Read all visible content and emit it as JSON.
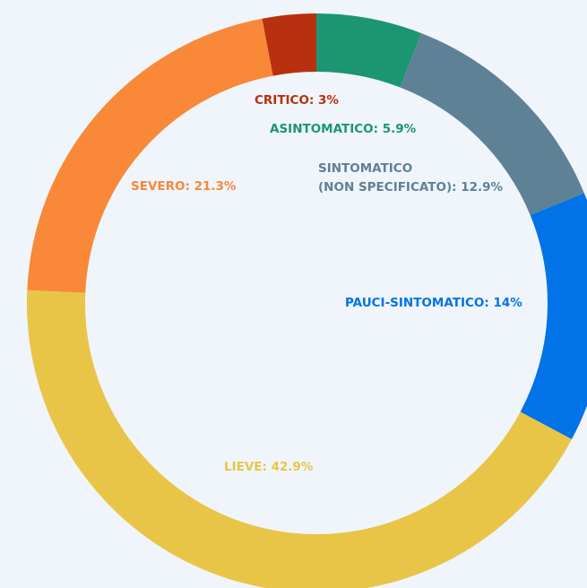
{
  "chart_data": {
    "type": "donut",
    "values": [
      5.9,
      12.9,
      14,
      42.9,
      21.3,
      3
    ],
    "value_labels": [
      [
        "ASINTOMATICO: 5.9%"
      ],
      [
        "SINTOMATICO",
        "(NON SPECIFICATO): 12.9%"
      ],
      [
        "PAUCI-SINTOMATICO: 14%"
      ],
      [
        "LIEVE: 42.9%"
      ],
      [
        "SEVERO: 21.3%"
      ],
      [
        "CRITICO: 3%"
      ]
    ],
    "colors": [
      "#1b9670",
      "#5f8196",
      "#0173e6",
      "#e8c547",
      "#f98839",
      "#b8300e"
    ]
  }
}
